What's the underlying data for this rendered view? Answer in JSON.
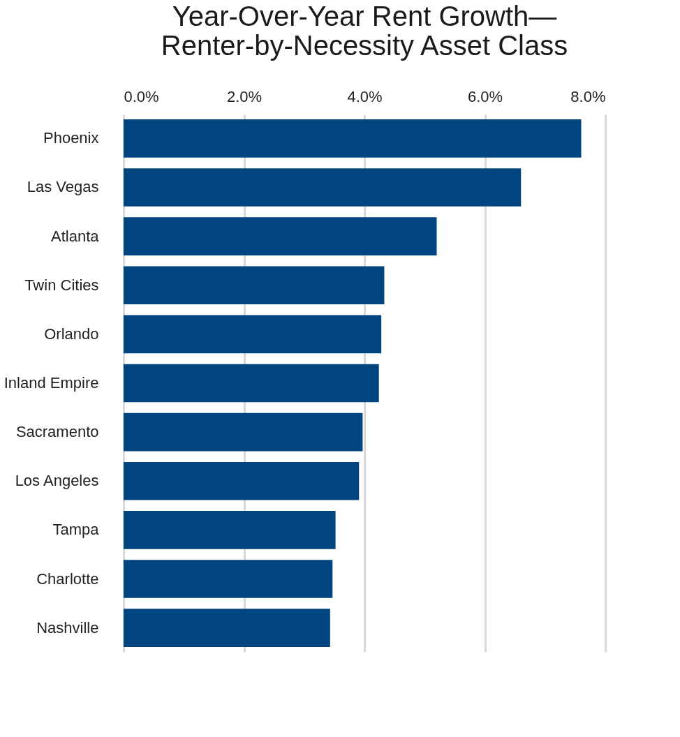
{
  "chart_data": {
    "type": "bar",
    "orientation": "horizontal",
    "title": "Year-Over-Year Rent Growth—\nRenter-by-Necessity Asset Class",
    "categories": [
      "Phoenix",
      "Las Vegas",
      "Atlanta",
      "Twin Cities",
      "Orlando",
      "Inland Empire",
      "Sacramento",
      "Los Angeles",
      "Tampa",
      "Charlotte",
      "Nashville"
    ],
    "values": [
      7.6,
      6.6,
      5.2,
      4.33,
      4.28,
      4.24,
      3.97,
      3.91,
      3.52,
      3.47,
      3.43
    ],
    "color": "#004480",
    "xlim": [
      0,
      8
    ],
    "xticks": [
      {
        "value": 0,
        "label": "0.0%"
      },
      {
        "value": 2,
        "label": "2.0%"
      },
      {
        "value": 4,
        "label": "4.0%"
      },
      {
        "value": 6,
        "label": "6.0%"
      },
      {
        "value": 8,
        "label": "8.0%"
      }
    ],
    "grid": "x"
  }
}
